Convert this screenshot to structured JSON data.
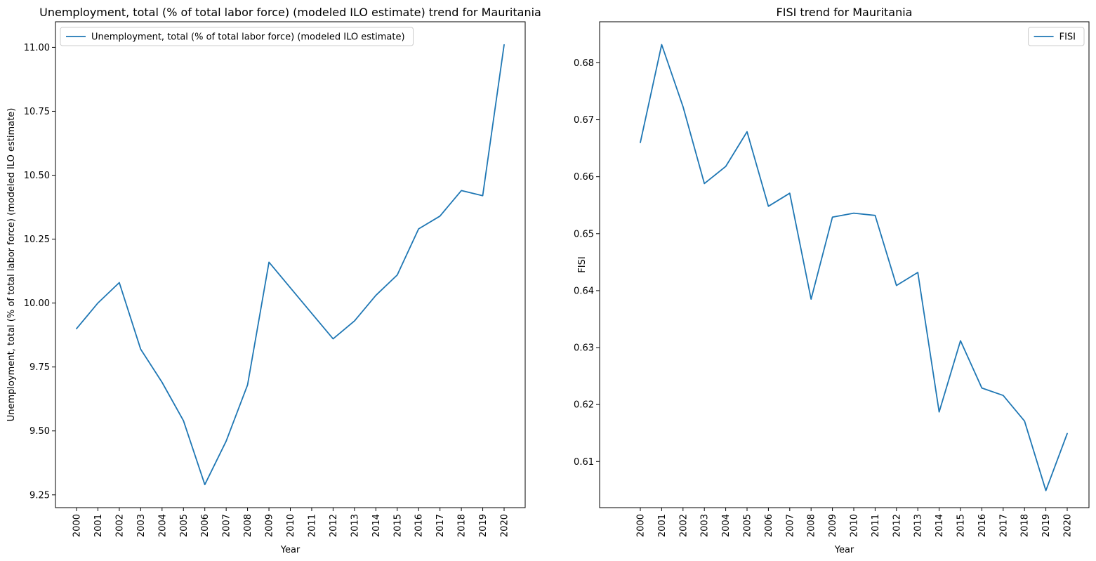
{
  "chart_data": [
    {
      "type": "line",
      "title": "Unemployment, total (% of total labor force) (modeled ILO estimate) trend for Mauritania",
      "xlabel": "Year",
      "ylabel": "Unemployment, total (% of total labor force) (modeled ILO estimate)",
      "x": [
        "2000",
        "2001",
        "2002",
        "2003",
        "2004",
        "2005",
        "2006",
        "2007",
        "2008",
        "2009",
        "2010",
        "2011",
        "2012",
        "2013",
        "2014",
        "2015",
        "2016",
        "2017",
        "2018",
        "2019",
        "2020"
      ],
      "series": [
        {
          "name": "Unemployment, total (% of total labor force) (modeled ILO estimate)",
          "color": "#1f77b4",
          "values": [
            9.9,
            10.0,
            10.08,
            9.82,
            9.69,
            9.54,
            9.29,
            9.46,
            9.68,
            10.16,
            10.06,
            9.96,
            9.86,
            9.93,
            10.03,
            10.11,
            10.29,
            10.34,
            10.44,
            10.42,
            11.01
          ]
        }
      ],
      "yticks": [
        "9.25",
        "9.50",
        "9.75",
        "10.00",
        "10.25",
        "10.50",
        "10.75",
        "11.00"
      ],
      "ylim": [
        9.2,
        11.1
      ],
      "legend_position": "top-left",
      "grid": false
    },
    {
      "type": "line",
      "title": "FISI trend for Mauritania",
      "xlabel": "Year",
      "ylabel": "FISI",
      "x": [
        "2000",
        "2001",
        "2002",
        "2003",
        "2004",
        "2005",
        "2006",
        "2007",
        "2008",
        "2009",
        "2010",
        "2011",
        "2012",
        "2013",
        "2014",
        "2015",
        "2016",
        "2017",
        "2018",
        "2019",
        "2020"
      ],
      "series": [
        {
          "name": "FISI",
          "color": "#1f77b4",
          "values": [
            0.666,
            0.6832,
            0.6723,
            0.6588,
            0.6618,
            0.6679,
            0.6548,
            0.6571,
            0.6385,
            0.6529,
            0.6536,
            0.6532,
            0.6409,
            0.6432,
            0.6187,
            0.6312,
            0.6229,
            0.6216,
            0.6171,
            0.6049,
            0.6149
          ]
        }
      ],
      "yticks": [
        "0.61",
        "0.62",
        "0.63",
        "0.64",
        "0.65",
        "0.66",
        "0.67",
        "0.68"
      ],
      "ylim": [
        0.6019,
        0.6872
      ],
      "legend_position": "top-right",
      "grid": false
    }
  ]
}
